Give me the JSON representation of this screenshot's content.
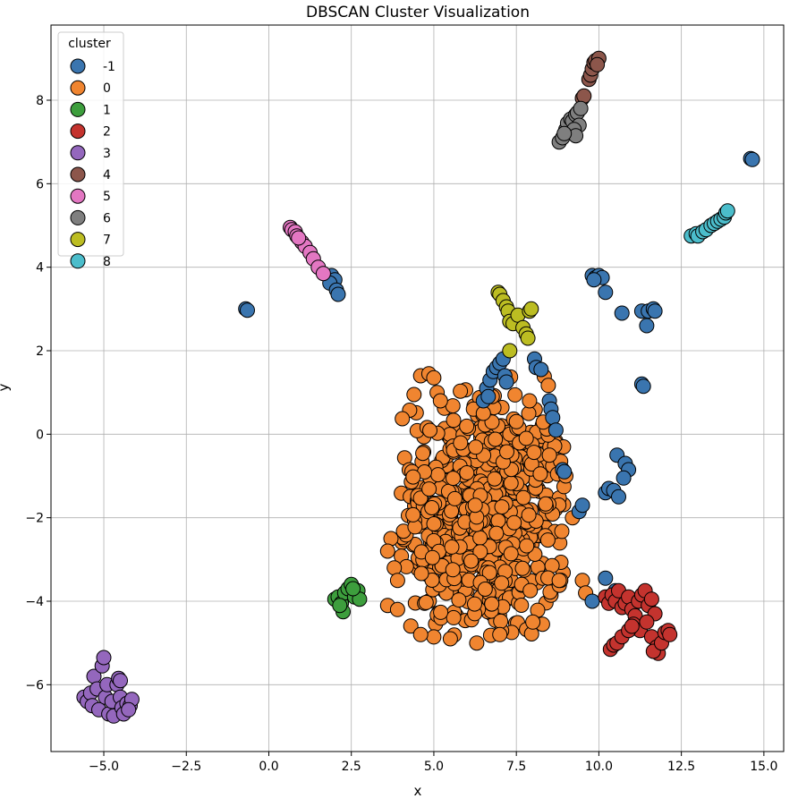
{
  "chart_data": {
    "type": "scatter",
    "title": "DBSCAN Cluster Visualization",
    "xlabel": "x",
    "ylabel": "y",
    "xlim": [
      -6.6,
      15.6
    ],
    "ylim": [
      -7.6,
      9.8
    ],
    "xticks": [
      -5.0,
      -2.5,
      0.0,
      2.5,
      5.0,
      7.5,
      10.0,
      12.5,
      15.0
    ],
    "xtick_labels": [
      "−5.0",
      "−2.5",
      "0.0",
      "2.5",
      "5.0",
      "7.5",
      "10.0",
      "12.5",
      "15.0"
    ],
    "yticks": [
      -6,
      -4,
      -2,
      0,
      2,
      4,
      6,
      8
    ],
    "ytick_labels": [
      "−6",
      "−4",
      "−2",
      "0",
      "2",
      "4",
      "6",
      "8"
    ],
    "grid": true,
    "legend": {
      "title": "cluster",
      "placement": "top-left"
    },
    "series": [
      {
        "name": "-1",
        "color": "#3a75af",
        "points": [
          [
            -0.7,
            3.0
          ],
          [
            -0.65,
            2.97
          ],
          [
            1.9,
            3.8
          ],
          [
            2.0,
            3.7
          ],
          [
            1.85,
            3.62
          ],
          [
            2.05,
            3.45
          ],
          [
            2.1,
            3.35
          ],
          [
            6.5,
            0.8
          ],
          [
            6.6,
            1.1
          ],
          [
            6.7,
            1.3
          ],
          [
            6.8,
            1.5
          ],
          [
            6.9,
            1.6
          ],
          [
            7.0,
            1.7
          ],
          [
            7.1,
            1.8
          ],
          [
            7.15,
            1.4
          ],
          [
            7.2,
            1.25
          ],
          [
            6.65,
            0.9
          ],
          [
            8.05,
            1.8
          ],
          [
            8.1,
            1.6
          ],
          [
            8.25,
            1.55
          ],
          [
            8.5,
            0.8
          ],
          [
            8.55,
            0.6
          ],
          [
            8.6,
            0.4
          ],
          [
            8.7,
            0.1
          ],
          [
            8.9,
            -0.85
          ],
          [
            8.95,
            -0.9
          ],
          [
            9.4,
            -1.85
          ],
          [
            9.5,
            -1.7
          ],
          [
            9.8,
            3.8
          ],
          [
            9.9,
            3.75
          ],
          [
            10.0,
            3.8
          ],
          [
            10.1,
            3.75
          ],
          [
            10.2,
            3.4
          ],
          [
            9.85,
            3.7
          ],
          [
            10.7,
            2.9
          ],
          [
            11.3,
            2.95
          ],
          [
            11.5,
            2.95
          ],
          [
            11.65,
            3.0
          ],
          [
            11.7,
            2.95
          ],
          [
            11.45,
            2.6
          ],
          [
            11.3,
            1.2
          ],
          [
            11.35,
            1.15
          ],
          [
            14.6,
            6.6
          ],
          [
            14.65,
            6.58
          ],
          [
            10.2,
            -1.4
          ],
          [
            10.3,
            -1.3
          ],
          [
            10.45,
            -1.35
          ],
          [
            10.6,
            -1.5
          ],
          [
            10.55,
            -0.5
          ],
          [
            10.8,
            -0.7
          ],
          [
            10.9,
            -0.85
          ],
          [
            10.75,
            -1.05
          ],
          [
            10.2,
            -3.45
          ],
          [
            10.5,
            -3.75
          ],
          [
            9.8,
            -4.0
          ]
        ]
      },
      {
        "name": "0",
        "color": "#f08530",
        "center": [
          6.5,
          -2.0
        ],
        "spread": [
          1.35,
          1.45
        ],
        "count": 620,
        "bounds": [
          4.0,
          9.0,
          -4.9,
          1.4
        ],
        "extra_points": [
          [
            4.6,
            1.4
          ],
          [
            4.85,
            1.45
          ],
          [
            5.0,
            1.35
          ],
          [
            5.1,
            1.0
          ],
          [
            5.2,
            0.8
          ],
          [
            4.4,
            0.95
          ],
          [
            6.2,
            0.6
          ],
          [
            6.5,
            0.5
          ],
          [
            7.5,
            0.3
          ],
          [
            7.9,
            0.8
          ],
          [
            7.8,
            -0.1
          ],
          [
            8.5,
            -0.5
          ],
          [
            9.0,
            -1.0
          ],
          [
            9.2,
            -2.0
          ],
          [
            9.5,
            -3.5
          ],
          [
            9.6,
            -3.8
          ],
          [
            3.7,
            -2.5
          ],
          [
            3.6,
            -2.8
          ],
          [
            3.8,
            -3.2
          ],
          [
            3.6,
            -4.1
          ],
          [
            3.9,
            -4.2
          ],
          [
            4.6,
            -4.8
          ],
          [
            5.5,
            -4.9
          ],
          [
            6.3,
            -5.0
          ],
          [
            7.0,
            -4.8
          ],
          [
            8.0,
            -4.5
          ],
          [
            8.8,
            -3.5
          ],
          [
            3.9,
            -3.5
          ]
        ]
      },
      {
        "name": "1",
        "color": "#3d9e3d",
        "points": [
          [
            2.0,
            -3.95
          ],
          [
            2.1,
            -3.9
          ],
          [
            2.2,
            -4.05
          ],
          [
            2.25,
            -4.25
          ],
          [
            2.3,
            -3.8
          ],
          [
            2.4,
            -3.7
          ],
          [
            2.5,
            -3.6
          ],
          [
            2.6,
            -3.9
          ],
          [
            2.7,
            -3.75
          ],
          [
            2.75,
            -3.95
          ],
          [
            2.15,
            -4.1
          ],
          [
            2.55,
            -3.7
          ]
        ]
      },
      {
        "name": "2",
        "color": "#c4332e",
        "points": [
          [
            10.2,
            -3.9
          ],
          [
            10.3,
            -4.05
          ],
          [
            10.4,
            -3.85
          ],
          [
            10.5,
            -4.0
          ],
          [
            10.6,
            -3.75
          ],
          [
            10.7,
            -4.15
          ],
          [
            10.8,
            -4.05
          ],
          [
            10.9,
            -3.9
          ],
          [
            11.0,
            -4.2
          ],
          [
            11.1,
            -4.35
          ],
          [
            11.2,
            -4.0
          ],
          [
            11.3,
            -3.85
          ],
          [
            11.4,
            -3.75
          ],
          [
            11.5,
            -4.1
          ],
          [
            11.6,
            -3.95
          ],
          [
            11.7,
            -4.3
          ],
          [
            11.05,
            -4.55
          ],
          [
            11.25,
            -4.7
          ],
          [
            11.45,
            -4.5
          ],
          [
            11.6,
            -4.85
          ],
          [
            11.75,
            -5.1
          ],
          [
            11.8,
            -5.25
          ],
          [
            11.65,
            -5.2
          ],
          [
            11.9,
            -5.0
          ],
          [
            12.0,
            -4.75
          ],
          [
            12.1,
            -4.7
          ],
          [
            12.15,
            -4.8
          ],
          [
            10.35,
            -5.15
          ],
          [
            10.45,
            -5.05
          ],
          [
            10.55,
            -5.0
          ],
          [
            10.7,
            -4.85
          ],
          [
            10.9,
            -4.7
          ],
          [
            11.0,
            -4.6
          ]
        ]
      },
      {
        "name": "3",
        "color": "#9467bd",
        "points": [
          [
            -5.6,
            -6.3
          ],
          [
            -5.5,
            -6.4
          ],
          [
            -5.4,
            -6.2
          ],
          [
            -5.35,
            -6.5
          ],
          [
            -5.3,
            -5.8
          ],
          [
            -5.2,
            -6.1
          ],
          [
            -5.15,
            -6.6
          ],
          [
            -5.05,
            -5.55
          ],
          [
            -5.0,
            -5.35
          ],
          [
            -4.95,
            -6.3
          ],
          [
            -4.9,
            -6.0
          ],
          [
            -4.85,
            -6.7
          ],
          [
            -4.75,
            -6.4
          ],
          [
            -4.7,
            -6.75
          ],
          [
            -4.6,
            -6.0
          ],
          [
            -4.55,
            -5.85
          ],
          [
            -4.5,
            -6.3
          ],
          [
            -4.45,
            -6.55
          ],
          [
            -4.4,
            -6.7
          ],
          [
            -4.3,
            -6.45
          ],
          [
            -4.2,
            -6.5
          ],
          [
            -4.15,
            -6.35
          ],
          [
            -4.25,
            -6.6
          ],
          [
            -4.5,
            -5.9
          ]
        ]
      },
      {
        "name": "4",
        "color": "#8c564b",
        "points": [
          [
            9.5,
            8.05
          ],
          [
            9.55,
            8.1
          ],
          [
            9.7,
            8.5
          ],
          [
            9.75,
            8.6
          ],
          [
            9.8,
            8.75
          ],
          [
            9.85,
            8.9
          ],
          [
            9.9,
            8.95
          ],
          [
            10.0,
            9.0
          ],
          [
            9.95,
            8.85
          ]
        ]
      },
      {
        "name": "5",
        "color": "#e377c2",
        "points": [
          [
            0.65,
            4.95
          ],
          [
            0.7,
            4.9
          ],
          [
            0.8,
            4.85
          ],
          [
            0.85,
            4.75
          ],
          [
            1.0,
            4.6
          ],
          [
            1.1,
            4.5
          ],
          [
            1.25,
            4.35
          ],
          [
            1.35,
            4.2
          ],
          [
            1.5,
            4.0
          ],
          [
            1.65,
            3.85
          ],
          [
            0.9,
            4.7
          ]
        ]
      },
      {
        "name": "6",
        "color": "#7f7f7f",
        "points": [
          [
            8.8,
            7.0
          ],
          [
            8.9,
            7.1
          ],
          [
            9.0,
            7.3
          ],
          [
            9.05,
            7.45
          ],
          [
            9.15,
            7.55
          ],
          [
            9.2,
            7.5
          ],
          [
            9.3,
            7.65
          ],
          [
            9.35,
            7.7
          ],
          [
            9.4,
            7.4
          ],
          [
            9.25,
            7.3
          ],
          [
            9.45,
            7.8
          ],
          [
            9.3,
            7.15
          ],
          [
            8.95,
            7.2
          ]
        ]
      },
      {
        "name": "7",
        "color": "#bcbd22",
        "points": [
          [
            6.95,
            3.4
          ],
          [
            7.0,
            3.35
          ],
          [
            7.1,
            3.2
          ],
          [
            7.2,
            3.05
          ],
          [
            7.25,
            2.95
          ],
          [
            7.3,
            2.7
          ],
          [
            7.4,
            2.65
          ],
          [
            7.55,
            2.85
          ],
          [
            7.7,
            2.55
          ],
          [
            7.8,
            2.4
          ],
          [
            7.85,
            2.3
          ],
          [
            7.9,
            2.95
          ],
          [
            7.95,
            3.0
          ],
          [
            7.3,
            2.0
          ]
        ]
      },
      {
        "name": "8",
        "color": "#4bbdcb",
        "points": [
          [
            12.8,
            4.75
          ],
          [
            12.95,
            4.8
          ],
          [
            13.0,
            4.75
          ],
          [
            13.15,
            4.85
          ],
          [
            13.25,
            4.9
          ],
          [
            13.4,
            5.0
          ],
          [
            13.5,
            5.05
          ],
          [
            13.6,
            5.1
          ],
          [
            13.7,
            5.15
          ],
          [
            13.8,
            5.2
          ],
          [
            13.85,
            5.3
          ],
          [
            13.9,
            5.35
          ]
        ]
      }
    ]
  }
}
